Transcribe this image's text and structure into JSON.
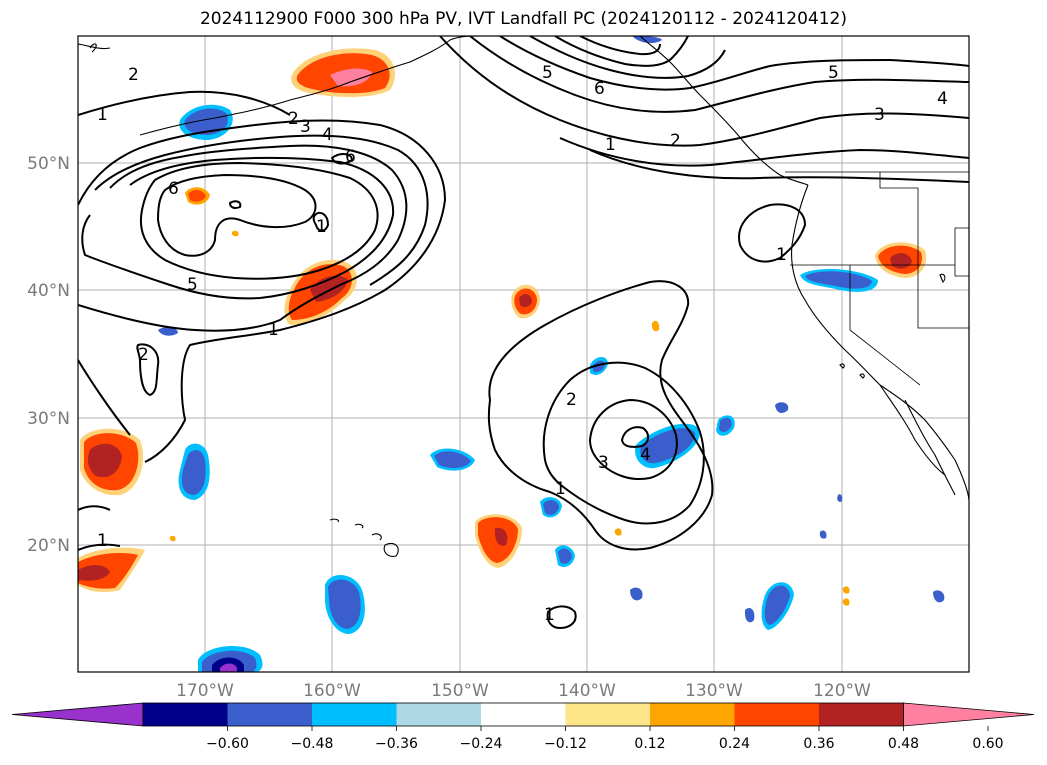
{
  "title": "2024112900 F000 300 hPa PV, IVT Landfall PC (2024120112 - 2024120412)",
  "lat_labels": [
    "50°N",
    "40°N",
    "30°N",
    "20°N"
  ],
  "lon_labels": [
    "170°W",
    "160°W",
    "150°W",
    "140°W",
    "130°W",
    "120°W"
  ],
  "contour_labels": {
    "c1": "2",
    "c2": "1",
    "c3": "2",
    "c4": "3",
    "c5": "4",
    "c6": "6",
    "c7": "6",
    "c8": "5",
    "c9": "1",
    "c10": "2",
    "c11": "1",
    "c12": "1",
    "c13": "5",
    "c14": "6",
    "c15": "5",
    "c16": "4",
    "c17": "3",
    "c18": "1",
    "c19": "2",
    "c20": "1",
    "c21": "2",
    "c22": "3",
    "c23": "4",
    "c24": "1",
    "c25": "1"
  },
  "colorbar": {
    "ticks": [
      "−0.60",
      "−0.48",
      "−0.36",
      "−0.24",
      "−0.12",
      "0.12",
      "0.24",
      "0.36",
      "0.48",
      "0.60"
    ],
    "colors": [
      "#9932cc",
      "#00008b",
      "#3a5fcd",
      "#00bfff",
      "#add8e6",
      "#ffffff",
      "#fde68a",
      "#ffa500",
      "#ff4500",
      "#b22222",
      "#ff80a0"
    ]
  }
}
